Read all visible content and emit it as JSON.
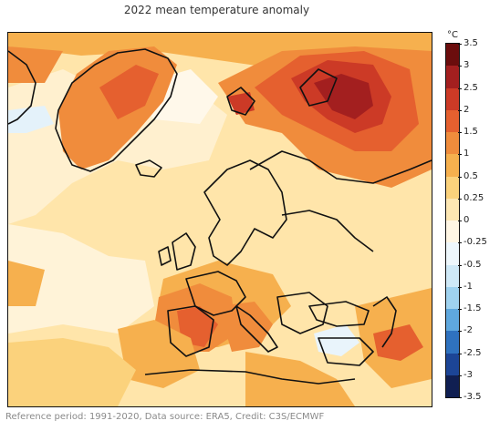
{
  "title": "2022 mean temperature anomaly",
  "colorbar": {
    "unit": "°C",
    "ticks": [
      "3.5",
      "3",
      "2.5",
      "2",
      "1.5",
      "1",
      "0.5",
      "0.25",
      "0",
      "-0.25",
      "-0.5",
      "-1",
      "-1.5",
      "-2",
      "-2.5",
      "-3",
      "-3.5"
    ],
    "colors": [
      "#6b0d0d",
      "#a31f1f",
      "#cc3a26",
      "#e5602f",
      "#f08c3c",
      "#f6b04e",
      "#fbd27c",
      "#fde7b3",
      "#fff6e4",
      "#eef7fc",
      "#cfe9f7",
      "#9fd2ef",
      "#5fa8de",
      "#2f72bf",
      "#1c4596",
      "#101f52"
    ]
  },
  "footer": "Reference period: 1991-2020, Data source: ERA5, Credit: C3S/ECMWF"
}
